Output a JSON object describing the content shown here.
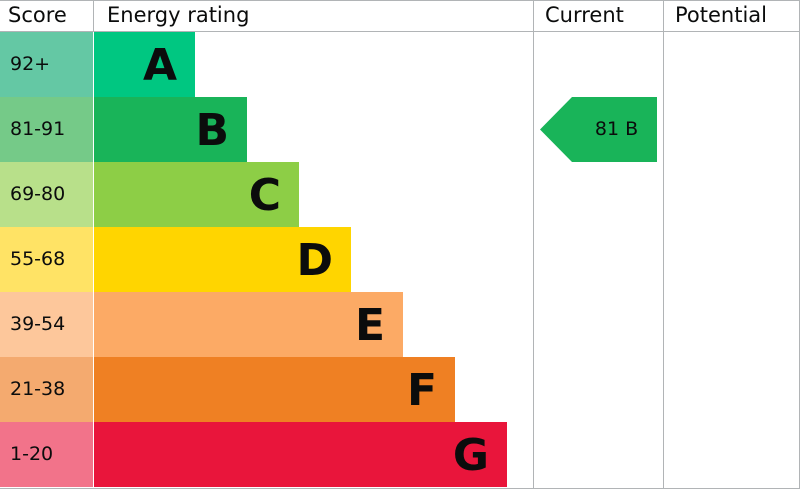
{
  "headers": {
    "score": "Score",
    "rating": "Energy rating",
    "current": "Current",
    "potential": "Potential"
  },
  "bands": [
    {
      "band": "A",
      "score": "92+",
      "color": "#00c781",
      "score_color": "#64c8a4"
    },
    {
      "band": "B",
      "score": "81-91",
      "color": "#19b459",
      "score_color": "#75ca88"
    },
    {
      "band": "C",
      "score": "69-80",
      "color": "#8dce46",
      "score_color": "#b8e08a"
    },
    {
      "band": "D",
      "score": "55-68",
      "color": "#ffd500",
      "score_color": "#ffe365"
    },
    {
      "band": "E",
      "score": "39-54",
      "color": "#fcaa65",
      "score_color": "#fdc79b"
    },
    {
      "band": "F",
      "score": "21-38",
      "color": "#ef8023",
      "score_color": "#f4aa6f"
    },
    {
      "band": "G",
      "score": "1-20",
      "color": "#e9153b",
      "score_color": "#f2738a"
    }
  ],
  "current": {
    "score": "81",
    "band": "B",
    "label": "81  B",
    "color": "#19b459"
  },
  "potential": null
}
